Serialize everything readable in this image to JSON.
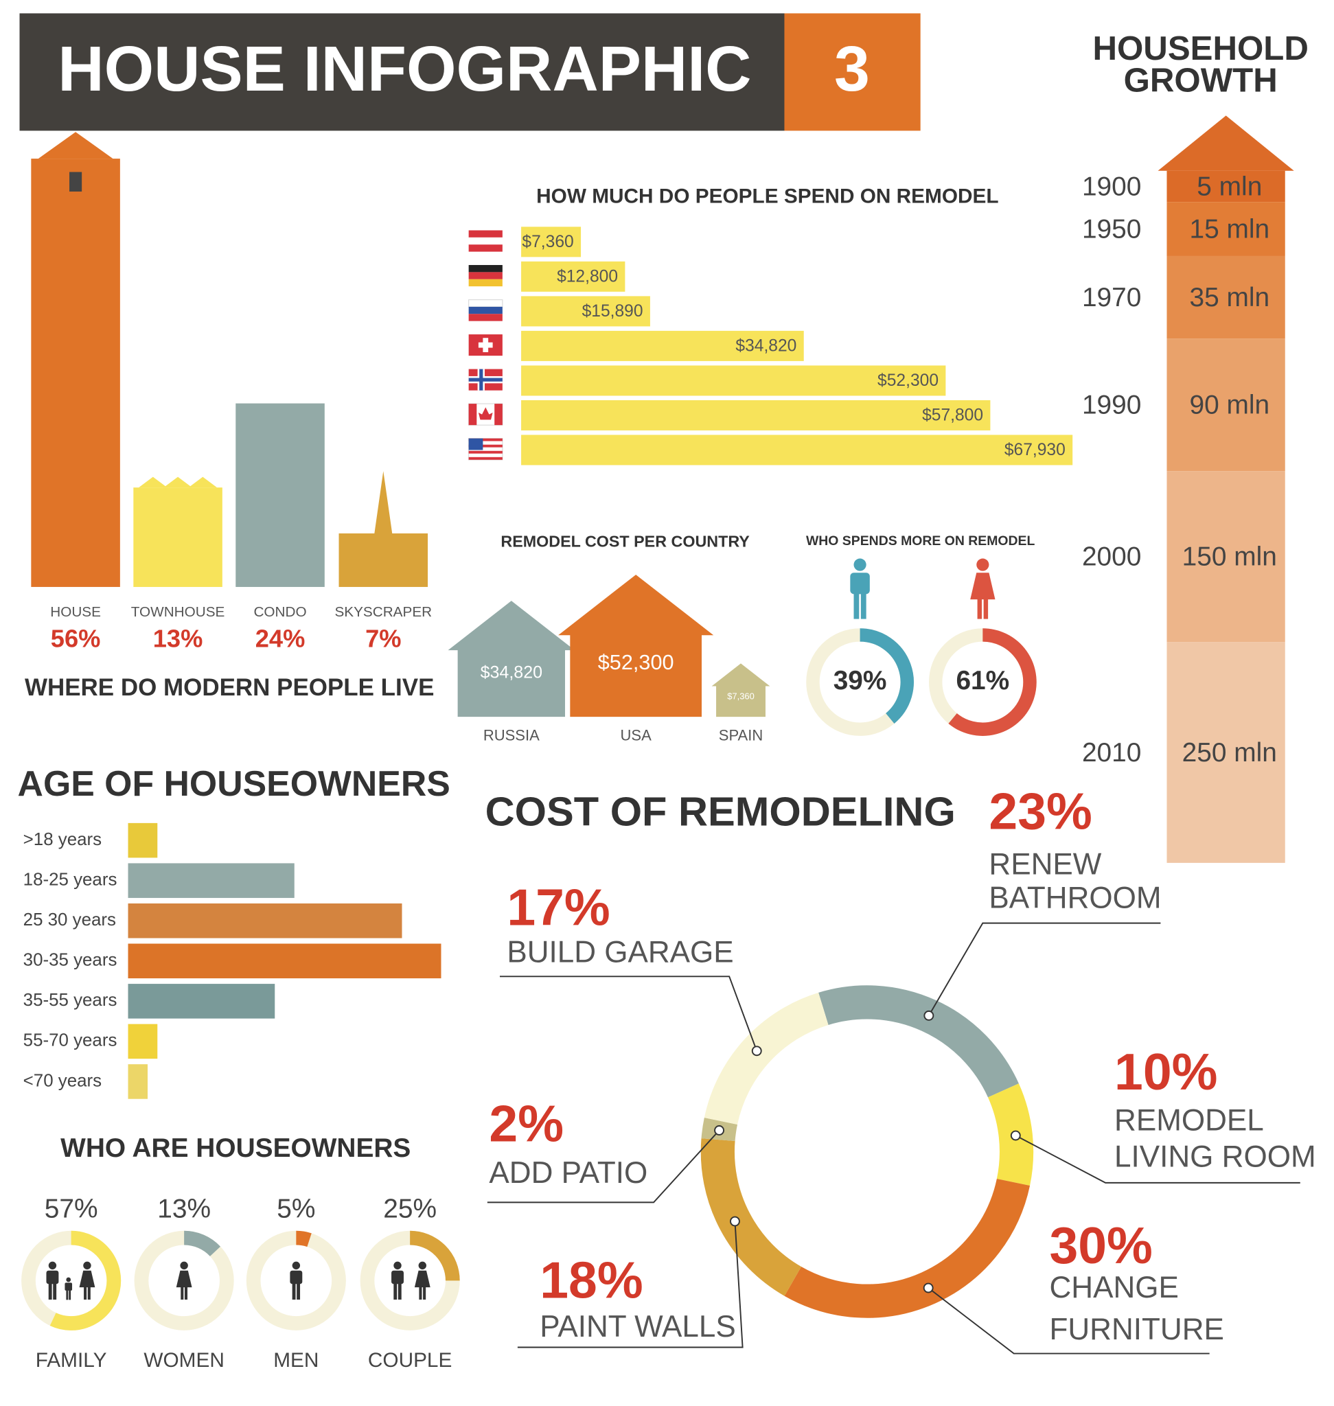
{
  "header": {
    "title": "HOUSE INFOGRAPHIC",
    "number": 3
  },
  "chart_data": [
    {
      "type": "building",
      "title": "WHERE DO MODERN PEOPLE LIVE",
      "categories": [
        "HOUSE",
        "TOWNHOUSE",
        "CONDO",
        "SKYSCRAPER"
      ],
      "values": [
        56,
        13,
        24,
        7
      ],
      "value_labels": [
        "56%",
        "13%",
        "24%",
        "7%"
      ],
      "colors": [
        "#e07428",
        "#f7e35a",
        "#93aaa7",
        "#d9a33a"
      ]
    },
    {
      "type": "hbar",
      "title": "HOW MUCH DO PEOPLE SPEND ON REMODEL",
      "values": [
        7360,
        12800,
        15890,
        34820,
        52300,
        57800,
        67930
      ],
      "value_labels": [
        "$7,360",
        "$12,800",
        "$15,890",
        "$34,820",
        "$52,300",
        "$57,800",
        "$67,930"
      ],
      "color": "#f7e35a"
    },
    {
      "type": "house",
      "title": "REMODEL COST PER COUNTRY",
      "categories": [
        "RUSSIA",
        "USA",
        "SPAIN"
      ],
      "values": [
        34820,
        52300,
        7360
      ],
      "value_labels": [
        "$34,820",
        "$52,300",
        "$7,360"
      ],
      "colors": [
        "#93aaa7",
        "#e07428",
        "#c8c08a"
      ]
    },
    {
      "type": "donut",
      "title": "WHO SPENDS MORE ON REMODEL",
      "values": [
        39,
        61
      ],
      "value_labels": [
        "39%",
        "61%"
      ],
      "colors": [
        "#4aa3b7",
        "#dc5440"
      ]
    },
    {
      "type": "column",
      "title": [
        "HOUSEHOLD",
        "GROWTH"
      ],
      "categories": [
        "1900",
        "1950",
        "1970",
        "1990",
        "2000",
        "2010"
      ],
      "values": [
        5,
        15,
        35,
        90,
        150,
        250
      ],
      "value_labels": [
        "5 mln",
        "15 mln",
        "35 mln",
        "90 mln",
        "150 mln",
        "250 mln"
      ],
      "colors": [
        "#dc6b28",
        "#e27d36",
        "#e58d4c",
        "#e9a26b",
        "#edb58a",
        "#f0c7a6"
      ]
    },
    {
      "type": "hbar",
      "title": "AGE OF HOUSEOWNERS",
      "categories": [
        ">18 years",
        "18-25 years",
        "25 30 years",
        "30-35 years",
        "35-55 years",
        "55-70 years",
        "<70 years"
      ],
      "values": [
        3,
        17,
        28,
        32,
        15,
        3,
        2
      ],
      "colors": [
        "#e8c93a",
        "#93aaa7",
        "#d4843f",
        "#dc7428",
        "#7a9a99",
        "#f0d23a",
        "#ecd668"
      ]
    },
    {
      "type": "donut",
      "title": "WHO ARE HOUSEOWNERS",
      "categories": [
        "FAMILY",
        "WOMEN",
        "MEN",
        "COUPLE"
      ],
      "values": [
        57,
        13,
        5,
        25
      ],
      "value_labels": [
        "57%",
        "13%",
        "5%",
        "25%"
      ],
      "colors": [
        "#f7e35a",
        "#93aaa7",
        "#e07428",
        "#d9a33a"
      ]
    },
    {
      "type": "ring",
      "title": "COST OF REMODELING",
      "categories": [
        [
          "RENEW",
          "BATHROOM"
        ],
        [
          "REMODEL",
          "LIVING ROOM"
        ],
        [
          "CHANGE",
          "FURNITURE"
        ],
        [
          "PAINT WALLS"
        ],
        [
          "ADD PATIO"
        ],
        [
          "BUILD GARAGE"
        ]
      ],
      "values": [
        23,
        10,
        30,
        18,
        2,
        17
      ],
      "value_labels": [
        "23%",
        "10%",
        "30%",
        "18%",
        "2%",
        "17%"
      ],
      "colors": [
        "#93aaa7",
        "#f7e34a",
        "#e07428",
        "#d9a33a",
        "#c8c08a",
        "#f8f4d3"
      ]
    }
  ]
}
